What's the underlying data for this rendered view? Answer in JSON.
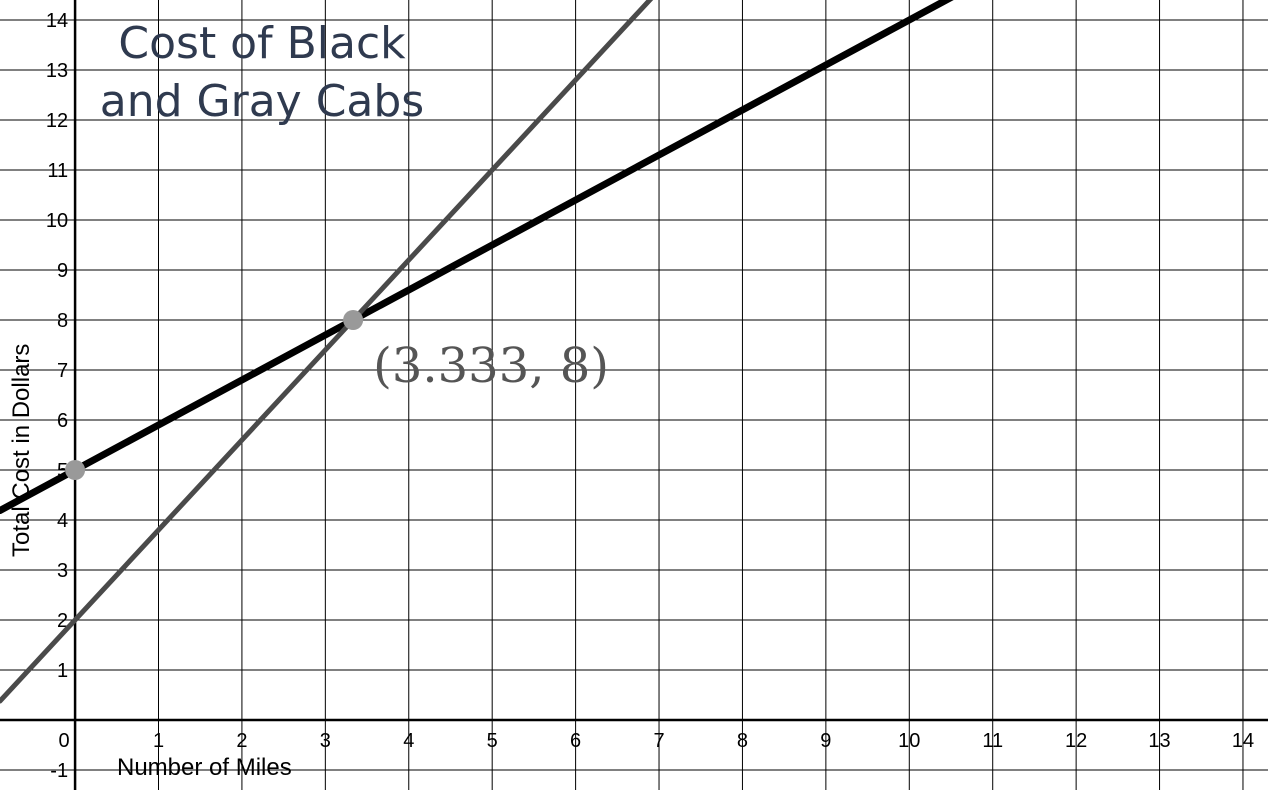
{
  "chart_data": {
    "type": "line",
    "title_lines": [
      "Cost of Black",
      "and Gray Cabs"
    ],
    "xlabel": "Number of Miles",
    "ylabel": "Total Cost in Dollars",
    "xlim": [
      -0.9,
      14.3
    ],
    "ylim": [
      -1.4,
      14.4
    ],
    "x_ticks": [
      0,
      1,
      2,
      3,
      4,
      5,
      6,
      7,
      8,
      9,
      10,
      11,
      12,
      13,
      14
    ],
    "y_ticks": [
      -1,
      1,
      2,
      3,
      4,
      5,
      6,
      7,
      8,
      9,
      10,
      11,
      12,
      13,
      14
    ],
    "grid": true,
    "series": [
      {
        "color": "#000000",
        "slope": 0.9,
        "intercept": 5
      },
      {
        "color": "#4a4a4a",
        "slope": 1.8,
        "intercept": 2
      }
    ],
    "points": [
      {
        "x": 0,
        "y": 5,
        "color": "#999999"
      },
      {
        "x": 3.333,
        "y": 8,
        "color": "#999999"
      }
    ],
    "annotation": {
      "text": "(3.333, 8)",
      "x": 3.333,
      "y": 8
    }
  }
}
